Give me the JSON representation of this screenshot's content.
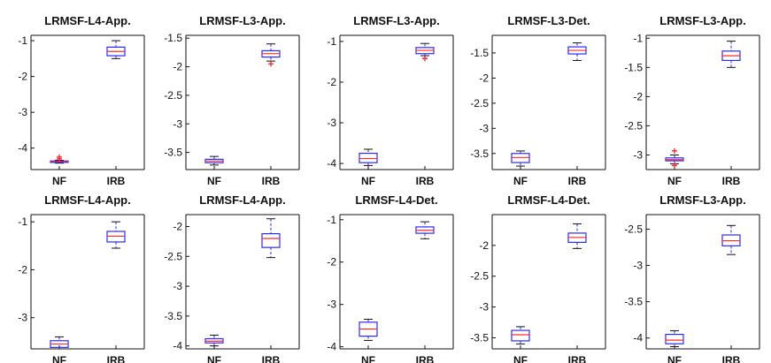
{
  "style": {
    "box_color": "#2a2aff",
    "median_color": "#ff2a2a",
    "outlier_color": "#ff2a2a",
    "axis_color": "#111111"
  },
  "chart_data": [
    {
      "type": "box",
      "title": "LRMSF-L4-App.",
      "categories": [
        "NF",
        "IRB"
      ],
      "ylim": [
        -4.6,
        -0.85
      ],
      "yticks": [
        "-1",
        "-2",
        "-3",
        "-4"
      ],
      "ytick_values": [
        -1,
        -2,
        -3,
        -4
      ],
      "grid": false,
      "boxes": [
        {
          "min": -4.42,
          "q1": -4.4,
          "median": -4.38,
          "q3": -4.36,
          "max": -4.34,
          "outliers": [
            -4.25,
            -4.3
          ]
        },
        {
          "min": -1.5,
          "q1": -1.42,
          "median": -1.3,
          "q3": -1.18,
          "max": -1.0,
          "outliers": []
        }
      ]
    },
    {
      "type": "box",
      "title": "LRMSF-L3-App.",
      "categories": [
        "NF",
        "IRB"
      ],
      "ylim": [
        -3.8,
        -1.45
      ],
      "yticks": [
        "-1.5",
        "-2",
        "-2.5",
        "-3",
        "-3.5"
      ],
      "ytick_values": [
        -1.5,
        -2,
        -2.5,
        -3,
        -3.5
      ],
      "grid": false,
      "boxes": [
        {
          "min": -3.72,
          "q1": -3.68,
          "median": -3.65,
          "q3": -3.62,
          "max": -3.57,
          "outliers": []
        },
        {
          "min": -1.9,
          "q1": -1.83,
          "median": -1.77,
          "q3": -1.72,
          "max": -1.6,
          "outliers": [
            -1.95
          ]
        }
      ]
    },
    {
      "type": "box",
      "title": "LRMSF-L3-App.",
      "categories": [
        "NF",
        "IRB"
      ],
      "ylim": [
        -4.15,
        -0.85
      ],
      "yticks": [
        "-1",
        "-2",
        "-3",
        "-4"
      ],
      "ytick_values": [
        -1,
        -2,
        -3,
        -4
      ],
      "grid": false,
      "boxes": [
        {
          "min": -4.05,
          "q1": -3.98,
          "median": -3.88,
          "q3": -3.75,
          "max": -3.65,
          "outliers": []
        },
        {
          "min": -1.35,
          "q1": -1.3,
          "median": -1.22,
          "q3": -1.15,
          "max": -1.05,
          "outliers": [
            -1.42
          ]
        }
      ]
    },
    {
      "type": "box",
      "title": "LRMSF-L3-Det.",
      "categories": [
        "NF",
        "IRB"
      ],
      "ylim": [
        -3.82,
        -1.15
      ],
      "yticks": [
        "-1.5",
        "-2",
        "-2.5",
        "-3",
        "-3.5"
      ],
      "ytick_values": [
        -1.5,
        -2,
        -2.5,
        -3,
        -3.5
      ],
      "grid": false,
      "boxes": [
        {
          "min": -3.75,
          "q1": -3.68,
          "median": -3.58,
          "q3": -3.5,
          "max": -3.45,
          "outliers": []
        },
        {
          "min": -1.65,
          "q1": -1.52,
          "median": -1.45,
          "q3": -1.38,
          "max": -1.3,
          "outliers": []
        }
      ]
    },
    {
      "type": "box",
      "title": "LRMSF-L3-App.",
      "categories": [
        "NF",
        "IRB"
      ],
      "ylim": [
        -3.25,
        -0.95
      ],
      "yticks": [
        "-1",
        "-1.5",
        "-2",
        "-2.5",
        "-3"
      ],
      "ytick_values": [
        -1,
        -1.5,
        -2,
        -2.5,
        -3
      ],
      "grid": false,
      "boxes": [
        {
          "min": -3.15,
          "q1": -3.1,
          "median": -3.08,
          "q3": -3.05,
          "max": -3.0,
          "outliers": [
            -2.93,
            -3.18
          ]
        },
        {
          "min": -1.5,
          "q1": -1.38,
          "median": -1.3,
          "q3": -1.22,
          "max": -1.05,
          "outliers": []
        }
      ]
    },
    {
      "type": "box",
      "title": "LRMSF-L4-App.",
      "categories": [
        "NF",
        "IRB"
      ],
      "ylim": [
        -3.65,
        -0.85
      ],
      "yticks": [
        "-1",
        "-2",
        "-3"
      ],
      "ytick_values": [
        -1,
        -2,
        -3
      ],
      "grid": false,
      "boxes": [
        {
          "min": -3.65,
          "q1": -3.62,
          "median": -3.55,
          "q3": -3.48,
          "max": -3.4,
          "outliers": []
        },
        {
          "min": -1.55,
          "q1": -1.42,
          "median": -1.3,
          "q3": -1.2,
          "max": -1.0,
          "outliers": []
        }
      ]
    },
    {
      "type": "box",
      "title": "LRMSF-L4-App.",
      "categories": [
        "NF",
        "IRB"
      ],
      "ylim": [
        -4.05,
        -1.8
      ],
      "yticks": [
        "-2",
        "-2.5",
        "-3",
        "-3.5",
        "-4"
      ],
      "ytick_values": [
        -2,
        -2.5,
        -3,
        -3.5,
        -4
      ],
      "grid": false,
      "boxes": [
        {
          "min": -4.0,
          "q1": -3.95,
          "median": -3.92,
          "q3": -3.88,
          "max": -3.82,
          "outliers": []
        },
        {
          "min": -2.52,
          "q1": -2.35,
          "median": -2.2,
          "q3": -2.12,
          "max": -1.87,
          "outliers": []
        }
      ]
    },
    {
      "type": "box",
      "title": "LRMSF-L4-Det.",
      "categories": [
        "NF",
        "IRB"
      ],
      "ylim": [
        -4.05,
        -0.88
      ],
      "yticks": [
        "-1",
        "-2",
        "-3",
        "-4"
      ],
      "ytick_values": [
        -1,
        -2,
        -3,
        -4
      ],
      "grid": false,
      "boxes": [
        {
          "min": -3.85,
          "q1": -3.75,
          "median": -3.58,
          "q3": -3.42,
          "max": -3.35,
          "outliers": []
        },
        {
          "min": -1.45,
          "q1": -1.32,
          "median": -1.25,
          "q3": -1.17,
          "max": -1.05,
          "outliers": []
        }
      ]
    },
    {
      "type": "box",
      "title": "LRMSF-L4-Det.",
      "categories": [
        "NF",
        "IRB"
      ],
      "ylim": [
        -3.68,
        -1.5
      ],
      "yticks": [
        "-2",
        "-2.5",
        "-3",
        "-3.5"
      ],
      "ytick_values": [
        -2,
        -2.5,
        -3,
        -3.5
      ],
      "grid": false,
      "boxes": [
        {
          "min": -3.6,
          "q1": -3.55,
          "median": -3.45,
          "q3": -3.38,
          "max": -3.32,
          "outliers": []
        },
        {
          "min": -2.05,
          "q1": -1.95,
          "median": -1.87,
          "q3": -1.8,
          "max": -1.65,
          "outliers": []
        }
      ]
    },
    {
      "type": "box",
      "title": "LRMSF-L3-App.",
      "categories": [
        "NF",
        "IRB"
      ],
      "ylim": [
        -4.15,
        -2.3
      ],
      "yticks": [
        "-2.5",
        "-3",
        "-3.5",
        "-4"
      ],
      "ytick_values": [
        -2.5,
        -3,
        -3.5,
        -4
      ],
      "grid": false,
      "boxes": [
        {
          "min": -4.12,
          "q1": -4.08,
          "median": -4.03,
          "q3": -3.95,
          "max": -3.9,
          "outliers": []
        },
        {
          "min": -2.85,
          "q1": -2.73,
          "median": -2.66,
          "q3": -2.58,
          "max": -2.45,
          "outliers": []
        }
      ]
    }
  ]
}
